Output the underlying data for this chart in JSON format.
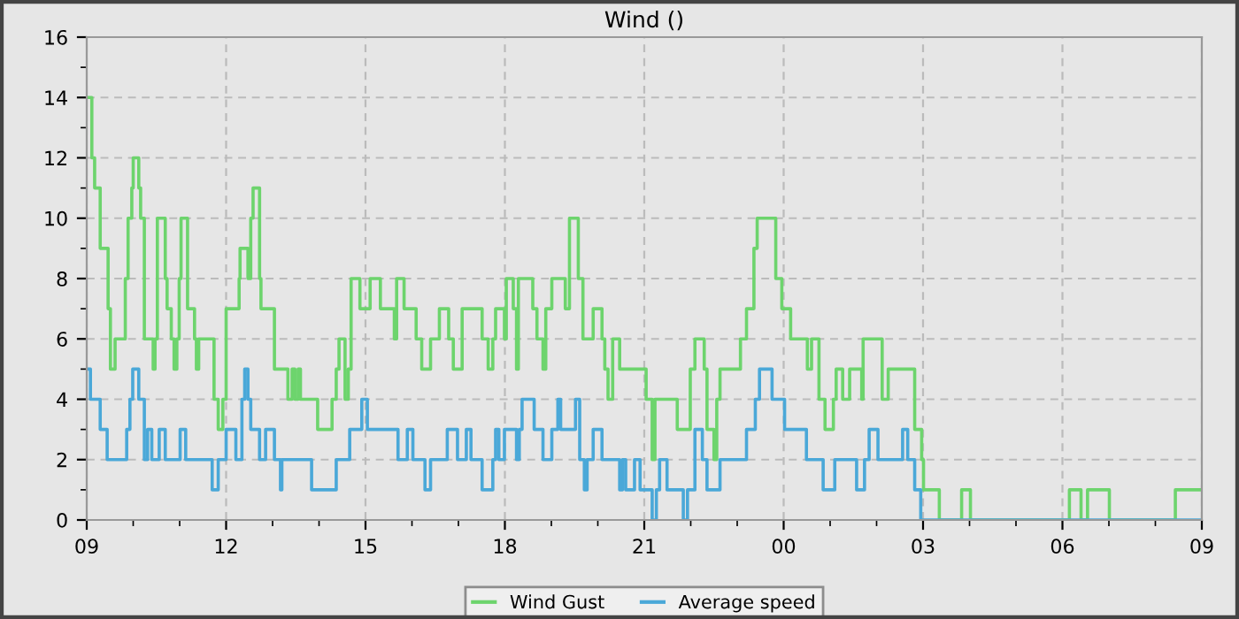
{
  "chart_data": {
    "type": "step",
    "title": "Wind ()",
    "xlim": [
      9,
      33
    ],
    "xticks": [
      {
        "value": 9,
        "label": "09"
      },
      {
        "value": 12,
        "label": "12"
      },
      {
        "value": 15,
        "label": "15"
      },
      {
        "value": 18,
        "label": "18"
      },
      {
        "value": 21,
        "label": "21"
      },
      {
        "value": 24,
        "label": "00"
      },
      {
        "value": 27,
        "label": "03"
      },
      {
        "value": 30,
        "label": "06"
      },
      {
        "value": 33,
        "label": "09"
      }
    ],
    "ylim": [
      0,
      16
    ],
    "yticks": [
      0,
      2,
      4,
      6,
      8,
      10,
      12,
      14,
      16
    ],
    "grid": true,
    "legend": "bottom",
    "line_style": "solid",
    "series": [
      {
        "name": "Wind Gust",
        "color": "#6dd46d",
        "x": [
          9.0,
          9.11,
          9.17,
          9.29,
          9.46,
          9.51,
          9.61,
          9.83,
          9.89,
          9.97,
          10.0,
          10.12,
          10.16,
          10.24,
          10.43,
          10.47,
          10.52,
          10.69,
          10.73,
          10.82,
          10.88,
          10.94,
          10.99,
          11.03,
          11.17,
          11.32,
          11.36,
          11.41,
          11.74,
          11.83,
          11.93,
          12.0,
          12.28,
          12.3,
          12.47,
          12.53,
          12.58,
          12.72,
          12.75,
          13.04,
          13.33,
          13.42,
          13.48,
          13.55,
          13.6,
          13.97,
          14.28,
          14.37,
          14.43,
          14.56,
          14.63,
          14.69,
          14.88,
          15.1,
          15.32,
          15.62,
          15.67,
          15.83,
          16.09,
          16.21,
          16.4,
          16.59,
          16.79,
          16.89,
          17.08,
          17.51,
          17.64,
          17.74,
          17.8,
          17.99,
          18.03,
          18.18,
          18.25,
          18.29,
          18.6,
          18.69,
          18.82,
          18.88,
          19.01,
          19.3,
          19.39,
          19.58,
          19.68,
          19.9,
          20.09,
          20.15,
          20.22,
          20.32,
          20.47,
          21.04,
          21.17,
          21.23,
          21.71,
          21.99,
          22.09,
          22.29,
          22.35,
          22.5,
          22.56,
          22.63,
          23.07,
          23.2,
          23.36,
          23.43,
          23.83,
          23.96,
          24.15,
          24.51,
          24.6,
          24.76,
          24.89,
          25.07,
          25.13,
          25.27,
          25.42,
          25.68,
          25.71,
          26.12,
          26.25,
          26.82,
          26.97,
          27.01,
          27.35,
          27.83,
          28.02,
          30.15,
          30.4,
          30.54,
          31.01,
          32.43,
          33.0
        ],
        "values": [
          14,
          12,
          11,
          9,
          7,
          5,
          6,
          8,
          10,
          11,
          12,
          11,
          10,
          6,
          5,
          6,
          10,
          8,
          7,
          6,
          5,
          6,
          8,
          10,
          7,
          6,
          5,
          6,
          4,
          3,
          4,
          7,
          8,
          9,
          8,
          10,
          11,
          8,
          7,
          5,
          4,
          5,
          4,
          5,
          4,
          3,
          4,
          5,
          6,
          4,
          5,
          8,
          7,
          8,
          7,
          6,
          8,
          7,
          6,
          5,
          6,
          7,
          6,
          5,
          7,
          6,
          5,
          6,
          7,
          6,
          8,
          7,
          5,
          8,
          7,
          6,
          5,
          7,
          8,
          7,
          10,
          8,
          6,
          7,
          6,
          5,
          4,
          6,
          5,
          4,
          2,
          4,
          3,
          5,
          6,
          5,
          3,
          2,
          4,
          5,
          6,
          7,
          9,
          10,
          8,
          7,
          6,
          5,
          6,
          4,
          3,
          4,
          5,
          4,
          5,
          4,
          6,
          4,
          5,
          3,
          2,
          1,
          0,
          1,
          0,
          1,
          0,
          1,
          0,
          1,
          1
        ]
      },
      {
        "name": "Average speed",
        "color": "#4aa8d8",
        "x": [
          9.0,
          9.08,
          9.29,
          9.44,
          9.86,
          9.93,
          9.99,
          10.12,
          10.24,
          10.31,
          10.4,
          10.56,
          10.69,
          11.01,
          11.13,
          11.7,
          11.83,
          12.0,
          12.21,
          12.34,
          12.4,
          12.47,
          12.53,
          12.72,
          12.85,
          13.04,
          13.17,
          13.2,
          13.84,
          14.37,
          14.66,
          14.92,
          15.04,
          15.7,
          15.9,
          16.02,
          16.28,
          16.4,
          16.76,
          16.98,
          17.17,
          17.27,
          17.51,
          17.74,
          17.8,
          17.87,
          17.99,
          18.25,
          18.31,
          18.37,
          18.63,
          18.82,
          19.01,
          19.14,
          19.2,
          19.52,
          19.61,
          19.71,
          19.77,
          19.9,
          20.09,
          20.47,
          20.53,
          20.6,
          20.79,
          20.91,
          21.17,
          21.26,
          21.33,
          21.49,
          21.84,
          21.93,
          22.09,
          22.25,
          22.35,
          22.63,
          23.2,
          23.39,
          23.48,
          23.75,
          24.02,
          24.49,
          24.85,
          25.1,
          25.57,
          25.74,
          25.84,
          26.03,
          26.56,
          26.67,
          26.82,
          26.95,
          33.0
        ],
        "values": [
          5,
          4,
          3,
          2,
          3,
          4,
          5,
          4,
          2,
          3,
          2,
          3,
          2,
          3,
          2,
          1,
          2,
          3,
          2,
          4,
          5,
          4,
          3,
          2,
          3,
          2,
          1,
          2,
          1,
          2,
          3,
          4,
          3,
          2,
          3,
          2,
          1,
          2,
          3,
          2,
          3,
          2,
          1,
          2,
          3,
          2,
          3,
          2,
          3,
          4,
          3,
          2,
          3,
          4,
          3,
          4,
          2,
          1,
          2,
          3,
          2,
          1,
          2,
          1,
          2,
          1,
          0,
          1,
          2,
          1,
          0,
          1,
          3,
          2,
          1,
          2,
          3,
          4,
          5,
          4,
          3,
          2,
          1,
          2,
          1,
          2,
          3,
          2,
          3,
          2,
          1,
          0,
          0
        ]
      }
    ]
  }
}
